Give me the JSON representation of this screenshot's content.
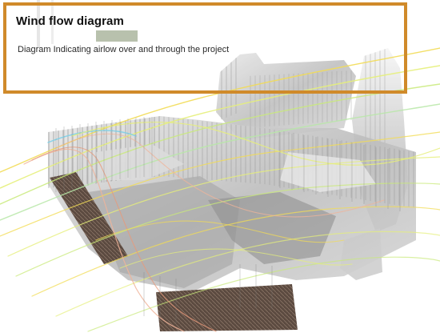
{
  "figure": {
    "title": "Wind flow diagram",
    "subtitle": "Diagram Indicating airlow over and through the project",
    "frame_color": "#d08a2a",
    "streamline_colors": [
      "#f2dc55",
      "#e6ef7a",
      "#c9ea7a",
      "#b9e8a8",
      "#f0b49a",
      "#e79a7a",
      "#7fd0e8"
    ]
  }
}
